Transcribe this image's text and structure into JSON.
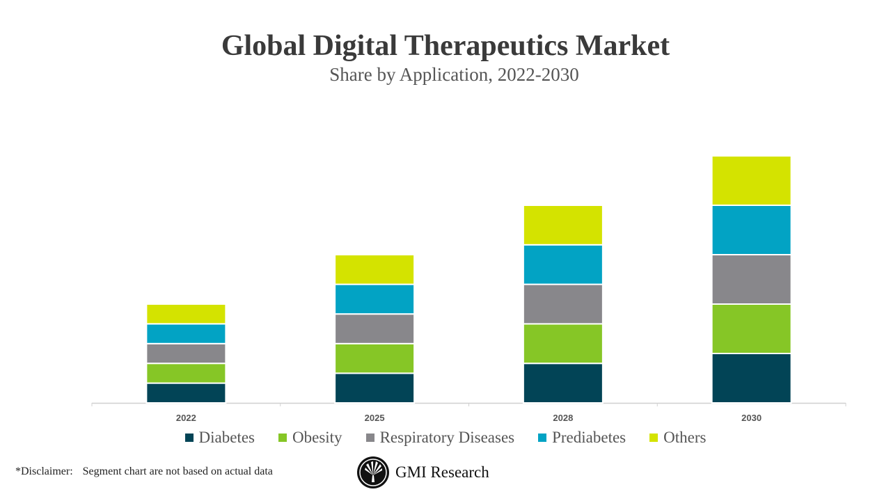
{
  "chart_data": {
    "type": "bar",
    "stacked": true,
    "title": "Global Digital Therapeutics Market",
    "subtitle": "Share by Application, 2022-2030",
    "categories": [
      "2022",
      "2025",
      "2028",
      "2030"
    ],
    "series": [
      {
        "name": "Diabetes",
        "color": "#024456",
        "values": [
          20,
          30,
          40,
          50
        ]
      },
      {
        "name": "Obesity",
        "color": "#86c626",
        "values": [
          20,
          30,
          40,
          50
        ]
      },
      {
        "name": "Respiratory Diseases",
        "color": "#88878b",
        "values": [
          20,
          30,
          40,
          50
        ]
      },
      {
        "name": "Prediabetes",
        "color": "#02a3c4",
        "values": [
          20,
          30,
          40,
          50
        ]
      },
      {
        "name": "Others",
        "color": "#d4e300",
        "values": [
          20,
          30,
          40,
          50
        ]
      }
    ],
    "xlabel": "",
    "ylabel": "",
    "grid": false,
    "legend_position": "bottom"
  },
  "footer": {
    "disclaimer_label": "*Disclaimer:",
    "disclaimer_text": "Segment chart are not based on actual data",
    "brand": "GMI Research",
    "logo_icon": "gmi-fan-logo-icon"
  }
}
